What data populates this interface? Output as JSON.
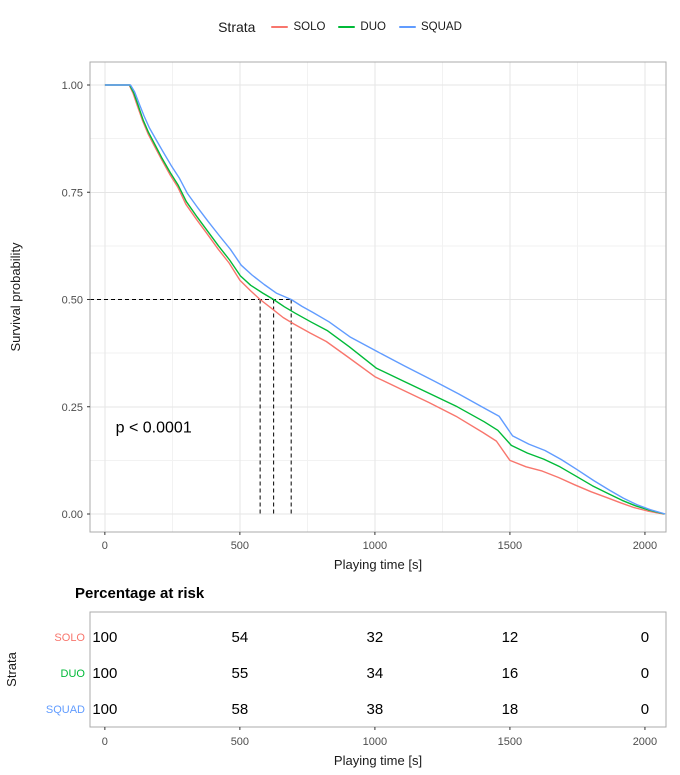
{
  "legend": {
    "title": "Strata",
    "items": [
      {
        "label": "SOLO",
        "color": "#F8766D"
      },
      {
        "label": "DUO",
        "color": "#00BA38"
      },
      {
        "label": "SQUAD",
        "color": "#619CFF"
      }
    ]
  },
  "chart_data": {
    "type": "line",
    "subtype": "kaplan-meier-survival",
    "title": "",
    "xlabel": "Playing time [s]",
    "ylabel": "Survival probability",
    "xlim": [
      -55,
      2078
    ],
    "ylim": [
      0,
      1
    ],
    "x_ticks": [
      0,
      500,
      1000,
      1500,
      2000
    ],
    "x_tick_labels": [
      "0",
      "500",
      "1000",
      "1500",
      "2000"
    ],
    "y_ticks": [
      0,
      0.25,
      0.5,
      0.75,
      1
    ],
    "y_tick_labels": [
      "0.00",
      "0.25",
      "0.50",
      "0.75",
      "1.00"
    ],
    "x_minor_ticks": [
      250,
      750,
      1250,
      1750
    ],
    "y_minor_ticks": [
      0.125,
      0.375,
      0.625,
      0.875
    ],
    "grid": true,
    "legend_position": "top",
    "annotation": {
      "text": "p < 0.0001",
      "x": 40,
      "y": 0.19
    },
    "median_lines": {
      "y": 0.5,
      "x_values": [
        575,
        625,
        690
      ]
    },
    "series": [
      {
        "name": "SOLO",
        "color": "#F8766D",
        "median": 575,
        "points": [
          [
            0,
            1
          ],
          [
            90,
            1
          ],
          [
            105,
            0.98
          ],
          [
            120,
            0.952
          ],
          [
            140,
            0.916
          ],
          [
            160,
            0.886
          ],
          [
            185,
            0.856
          ],
          [
            210,
            0.826
          ],
          [
            240,
            0.792
          ],
          [
            270,
            0.762
          ],
          [
            300,
            0.722
          ],
          [
            340,
            0.686
          ],
          [
            380,
            0.652
          ],
          [
            420,
            0.617
          ],
          [
            460,
            0.585
          ],
          [
            500,
            0.545
          ],
          [
            540,
            0.52
          ],
          [
            575,
            0.5
          ],
          [
            620,
            0.478
          ],
          [
            660,
            0.458
          ],
          [
            700,
            0.443
          ],
          [
            760,
            0.422
          ],
          [
            820,
            0.402
          ],
          [
            900,
            0.366
          ],
          [
            1000,
            0.32
          ],
          [
            1100,
            0.29
          ],
          [
            1200,
            0.26
          ],
          [
            1300,
            0.228
          ],
          [
            1400,
            0.19
          ],
          [
            1450,
            0.17
          ],
          [
            1500,
            0.125
          ],
          [
            1560,
            0.11
          ],
          [
            1620,
            0.1
          ],
          [
            1680,
            0.085
          ],
          [
            1740,
            0.068
          ],
          [
            1800,
            0.052
          ],
          [
            1860,
            0.038
          ],
          [
            1910,
            0.026
          ],
          [
            1960,
            0.015
          ],
          [
            2010,
            0.007
          ],
          [
            2070,
            0
          ]
        ]
      },
      {
        "name": "DUO",
        "color": "#00BA38",
        "median": 625,
        "points": [
          [
            0,
            1
          ],
          [
            92,
            1
          ],
          [
            107,
            0.982
          ],
          [
            122,
            0.955
          ],
          [
            142,
            0.918
          ],
          [
            162,
            0.889
          ],
          [
            187,
            0.859
          ],
          [
            212,
            0.829
          ],
          [
            242,
            0.796
          ],
          [
            272,
            0.766
          ],
          [
            302,
            0.728
          ],
          [
            342,
            0.692
          ],
          [
            382,
            0.658
          ],
          [
            422,
            0.624
          ],
          [
            462,
            0.592
          ],
          [
            502,
            0.555
          ],
          [
            540,
            0.533
          ],
          [
            585,
            0.515
          ],
          [
            625,
            0.5
          ],
          [
            665,
            0.483
          ],
          [
            705,
            0.468
          ],
          [
            765,
            0.447
          ],
          [
            825,
            0.427
          ],
          [
            905,
            0.39
          ],
          [
            1005,
            0.34
          ],
          [
            1105,
            0.31
          ],
          [
            1205,
            0.28
          ],
          [
            1305,
            0.25
          ],
          [
            1405,
            0.215
          ],
          [
            1455,
            0.195
          ],
          [
            1505,
            0.16
          ],
          [
            1565,
            0.142
          ],
          [
            1625,
            0.128
          ],
          [
            1685,
            0.11
          ],
          [
            1745,
            0.088
          ],
          [
            1805,
            0.066
          ],
          [
            1865,
            0.047
          ],
          [
            1915,
            0.032
          ],
          [
            1965,
            0.019
          ],
          [
            2015,
            0.009
          ],
          [
            2073,
            0
          ]
        ]
      },
      {
        "name": "SQUAD",
        "color": "#619CFF",
        "median": 690,
        "points": [
          [
            0,
            1
          ],
          [
            95,
            1
          ],
          [
            110,
            0.984
          ],
          [
            125,
            0.96
          ],
          [
            145,
            0.928
          ],
          [
            165,
            0.9
          ],
          [
            190,
            0.872
          ],
          [
            215,
            0.845
          ],
          [
            245,
            0.813
          ],
          [
            275,
            0.784
          ],
          [
            305,
            0.748
          ],
          [
            345,
            0.713
          ],
          [
            385,
            0.68
          ],
          [
            425,
            0.648
          ],
          [
            465,
            0.617
          ],
          [
            505,
            0.58
          ],
          [
            545,
            0.557
          ],
          [
            590,
            0.535
          ],
          [
            635,
            0.515
          ],
          [
            690,
            0.5
          ],
          [
            730,
            0.484
          ],
          [
            770,
            0.47
          ],
          [
            830,
            0.448
          ],
          [
            910,
            0.412
          ],
          [
            1010,
            0.378
          ],
          [
            1110,
            0.345
          ],
          [
            1210,
            0.313
          ],
          [
            1310,
            0.28
          ],
          [
            1410,
            0.245
          ],
          [
            1460,
            0.228
          ],
          [
            1510,
            0.182
          ],
          [
            1570,
            0.163
          ],
          [
            1630,
            0.148
          ],
          [
            1690,
            0.127
          ],
          [
            1750,
            0.103
          ],
          [
            1810,
            0.078
          ],
          [
            1870,
            0.055
          ],
          [
            1920,
            0.037
          ],
          [
            1970,
            0.022
          ],
          [
            2020,
            0.01
          ],
          [
            2075,
            0
          ]
        ]
      }
    ]
  },
  "risk_table": {
    "title": "Percentage at risk",
    "ylabel": "Strata",
    "xlabel": "Playing time [s]",
    "times": [
      0,
      500,
      1000,
      1500,
      2000
    ],
    "time_labels": [
      "0",
      "500",
      "1000",
      "1500",
      "2000"
    ],
    "rows": [
      {
        "label": "SOLO",
        "color": "#F8766D",
        "values": [
          "100",
          "54",
          "32",
          "12",
          "0"
        ]
      },
      {
        "label": "DUO",
        "color": "#00BA38",
        "values": [
          "100",
          "55",
          "34",
          "16",
          "0"
        ]
      },
      {
        "label": "SQUAD",
        "color": "#619CFF",
        "values": [
          "100",
          "58",
          "38",
          "18",
          "0"
        ]
      }
    ]
  },
  "colors": {
    "grid_major": "#E5E5E5",
    "grid_minor": "#F2F2F2",
    "panel_border": "#ABABAB",
    "tick_text": "#4D4D4D",
    "axis_title": "#1a1a1a"
  }
}
